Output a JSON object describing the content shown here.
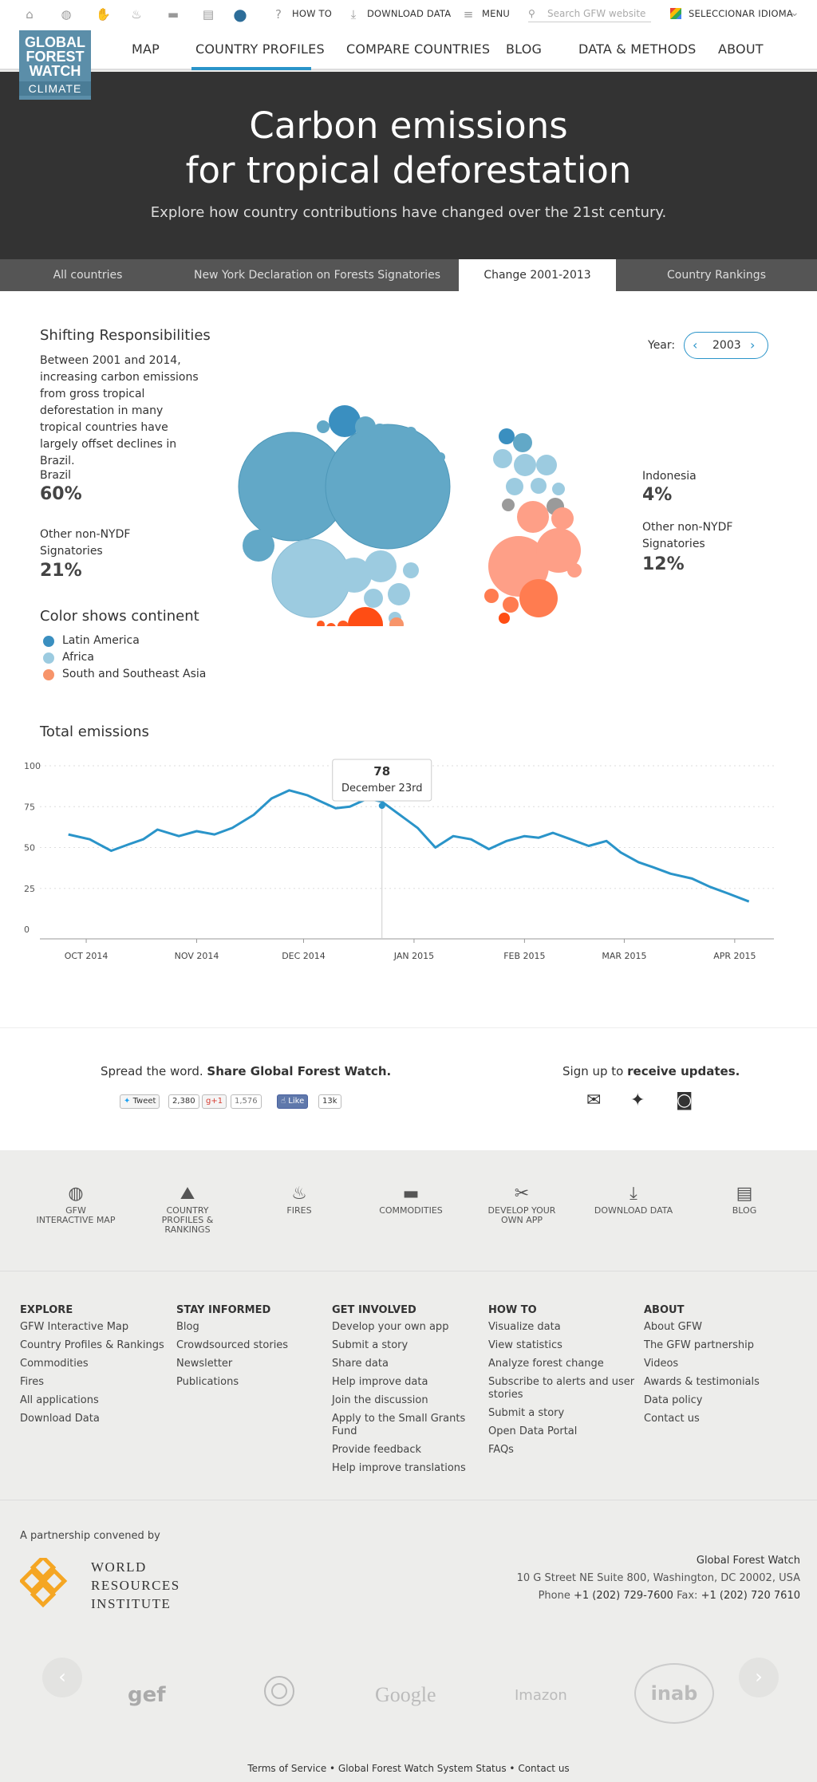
{
  "topbar": {
    "icons": [
      "home-icon",
      "globe-icon",
      "hand-icon",
      "fire-icon",
      "truck-icon",
      "newspaper-icon",
      "climate-icon"
    ],
    "how_to": "HOW TO",
    "download_data": "DOWNLOAD DATA",
    "menu": "MENU",
    "search_placeholder": "Search GFW website",
    "language": "SELECCIONAR IDIOMA"
  },
  "logo": {
    "line1": "GLOBAL",
    "line2": "FOREST",
    "line3": "WATCH",
    "line4": "CLIMATE"
  },
  "nav": [
    "MAP",
    "COUNTRY PROFILES",
    "COMPARE COUNTRIES",
    "BLOG",
    "DATA & METHODS",
    "ABOUT"
  ],
  "hero": {
    "title_line1": "Carbon emissions",
    "title_line2": "for tropical deforestation",
    "subtitle": "Explore how country contributions have changed over the 21st century."
  },
  "tabs": [
    "All countries",
    "New York Declaration on Forests Signatories",
    "Change 2001-2013",
    "Country Rankings"
  ],
  "shifting": {
    "title": "Shifting Responsibilities",
    "description": "Between 2001 and 2014, increasing carbon emissions from gross tropical deforestation in many tropical countries have largely offset declines in Brazil.",
    "left_stats": [
      {
        "label": "Brazil",
        "value": "60%"
      },
      {
        "label": "Other non-NYDF Signatories",
        "value": "21%"
      }
    ],
    "right_stats": [
      {
        "label": "Indonesia",
        "value": "4%"
      },
      {
        "label": "Other non-NYDF Signatories",
        "value": "12%"
      }
    ],
    "year_label": "Year:",
    "year_value": "2003",
    "legend_title": "Color shows continent",
    "legend": [
      {
        "label": "Latin America",
        "color": "#3a8fc0"
      },
      {
        "label": "Africa",
        "color": "#9ccbe0"
      },
      {
        "label": "South and Southeast Asia",
        "color": "#f7946a"
      }
    ]
  },
  "chart_data": {
    "type": "line",
    "title": "Total emissions",
    "ylim": [
      0,
      100
    ],
    "yticks": [
      0,
      25,
      50,
      75,
      100
    ],
    "xtick_labels": [
      "OCT 2014",
      "NOV 2014",
      "DEC 2014",
      "JAN 2015",
      "FEB 2015",
      "MAR 2015",
      "APR 2015"
    ],
    "x": [
      "2014-09-26",
      "2014-10-02",
      "2014-10-08",
      "2014-10-13",
      "2014-10-17",
      "2014-10-21",
      "2014-10-27",
      "2014-11-01",
      "2014-11-06",
      "2014-11-11",
      "2014-11-17",
      "2014-11-22",
      "2014-11-27",
      "2014-12-02",
      "2014-12-06",
      "2014-12-10",
      "2014-12-14",
      "2014-12-19",
      "2014-12-23",
      "2014-12-28",
      "2015-01-02",
      "2015-01-07",
      "2015-01-12",
      "2015-01-17",
      "2015-01-22",
      "2015-01-27",
      "2015-02-01",
      "2015-02-05",
      "2015-02-09",
      "2015-02-14",
      "2015-02-19",
      "2015-02-24",
      "2015-02-28",
      "2015-03-05",
      "2015-03-09",
      "2015-03-14",
      "2015-03-20",
      "2015-03-25",
      "2015-03-30",
      "2015-04-05"
    ],
    "y": [
      58,
      55,
      48,
      52,
      55,
      61,
      57,
      60,
      58,
      62,
      70,
      80,
      85,
      82,
      78,
      74,
      75,
      80,
      78,
      70,
      62,
      50,
      57,
      55,
      49,
      54,
      57,
      56,
      59,
      55,
      51,
      54,
      47,
      41,
      38,
      34,
      31,
      26,
      22,
      17
    ],
    "tooltip": {
      "value": "78",
      "date": "December 23rd"
    }
  },
  "share": {
    "spread": "Spread the word.",
    "share_gfw": "Share Global Forest Watch.",
    "tweet": "Tweet",
    "tweet_count": "2,380",
    "gplus": "g+1",
    "gplus_count": "1,576",
    "like": "Like",
    "like_count": "13k",
    "signup": "Sign up to",
    "receive": "receive updates."
  },
  "footer_icons": [
    {
      "icon": "globe-icon",
      "label": "GFW INTERACTIVE MAP"
    },
    {
      "icon": "country-icon",
      "label": "COUNTRY PROFILES & RANKINGS"
    },
    {
      "icon": "fire-icon",
      "label": "FIRES"
    },
    {
      "icon": "truck-icon",
      "label": "COMMODITIES"
    },
    {
      "icon": "tools-icon",
      "label": "DEVELOP YOUR OWN APP"
    },
    {
      "icon": "download-icon",
      "label": "DOWNLOAD DATA"
    },
    {
      "icon": "newspaper-icon",
      "label": "BLOG"
    }
  ],
  "footer_cols": [
    {
      "title": "EXPLORE",
      "links": [
        "GFW Interactive Map",
        "Country Profiles & Rankings",
        "Commodities",
        "Fires",
        "All applications",
        "Download Data"
      ]
    },
    {
      "title": "STAY INFORMED",
      "links": [
        "Blog",
        "Crowdsourced stories",
        "Newsletter",
        "Publications"
      ]
    },
    {
      "title": "GET INVOLVED",
      "links": [
        "Develop your own app",
        "Submit a story",
        "Share data",
        "Help improve data",
        "Join the discussion",
        "Apply to the Small Grants Fund",
        "Provide feedback",
        "Help improve translations"
      ]
    },
    {
      "title": "HOW TO",
      "links": [
        "Visualize data",
        "View statistics",
        "Analyze forest change",
        "Subscribe to alerts and user stories",
        "Submit a story",
        "Open Data Portal",
        "FAQs"
      ]
    },
    {
      "title": "ABOUT",
      "links": [
        "About GFW",
        "The GFW partnership",
        "Videos",
        "Awards & testimonials",
        "Data policy",
        "Contact us"
      ]
    }
  ],
  "partner": {
    "convened": "A partnership convened by",
    "wri_line1": "WORLD",
    "wri_line2": "RESOURCES",
    "wri_line3": "INSTITUTE",
    "org": "Global Forest Watch",
    "address": "10 G Street NE Suite 800, Washington, DC 20002, USA",
    "phone_label": "Phone",
    "phone": "+1 (202) 729-7600",
    "fax_label": "Fax:",
    "fax": "+1 (202) 720 7610"
  },
  "sponsors": [
    "gef",
    "Google",
    "Imazon",
    "inab"
  ],
  "bottom": "Terms of Service • Global Forest Watch System Status • Contact us"
}
